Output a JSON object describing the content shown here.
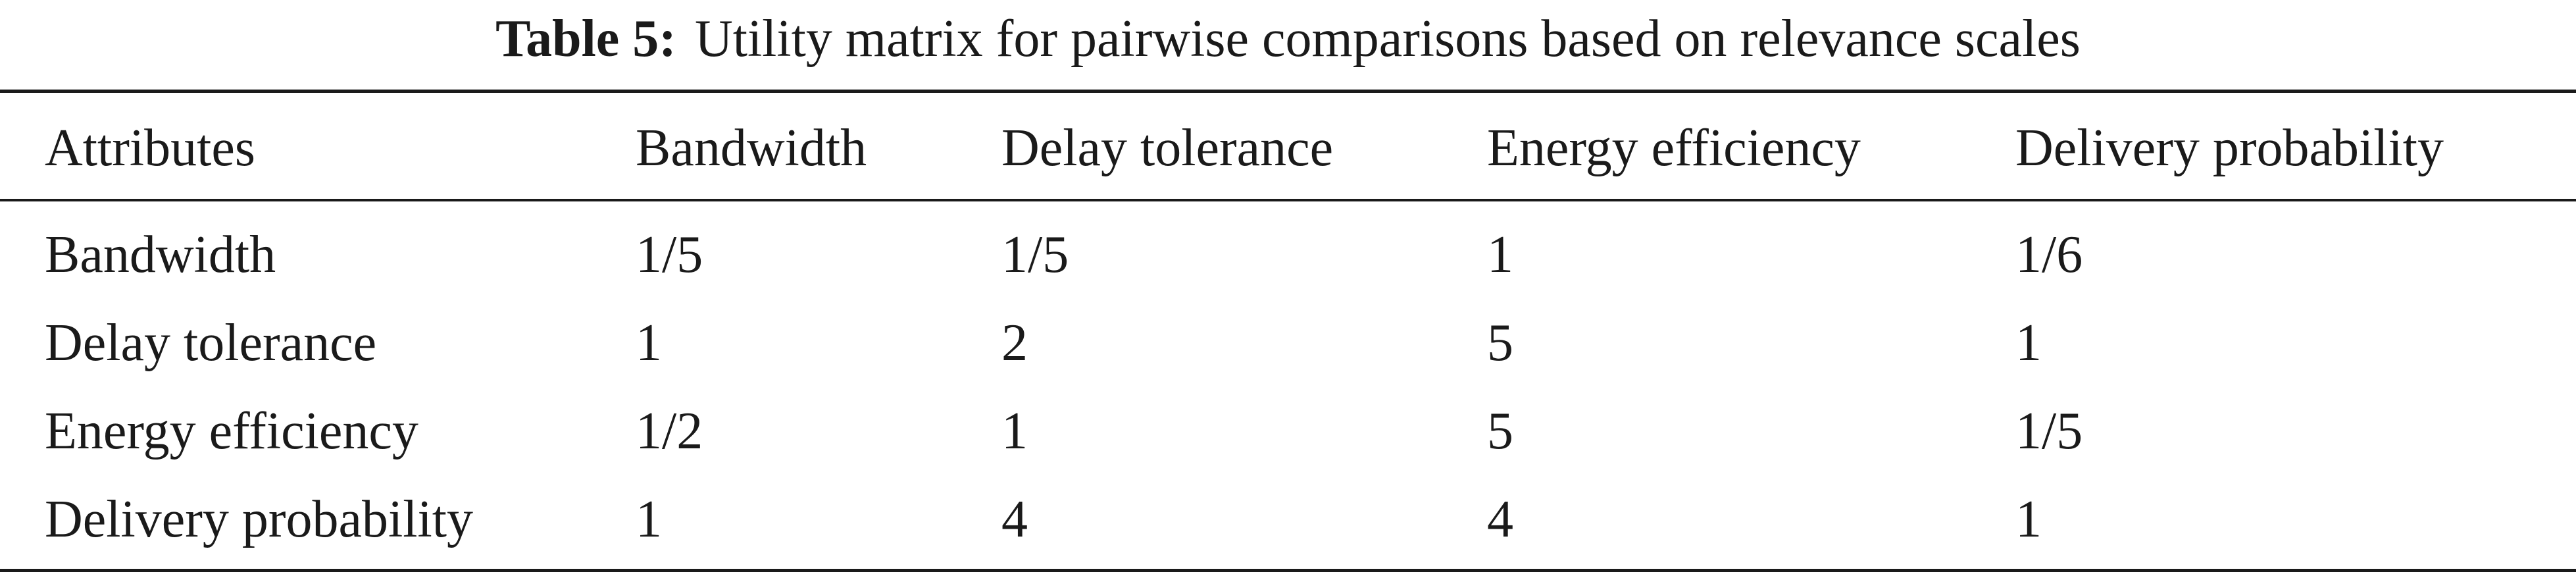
{
  "caption": {
    "label": "Table 5:",
    "text": "Utility matrix for pairwise comparisons based on relevance scales"
  },
  "table": {
    "headers": [
      "Attributes",
      "Bandwidth",
      "Delay tolerance",
      "Energy efficiency",
      "Delivery probability"
    ],
    "rows": [
      [
        "Bandwidth",
        "1/5",
        "1/5",
        "1",
        "1/6"
      ],
      [
        "Delay tolerance",
        "1",
        "2",
        "5",
        "1"
      ],
      [
        "Energy efficiency",
        "1/2",
        "1",
        "5",
        "1/5"
      ],
      [
        "Delivery probability",
        "1",
        "4",
        "4",
        "1"
      ]
    ]
  }
}
